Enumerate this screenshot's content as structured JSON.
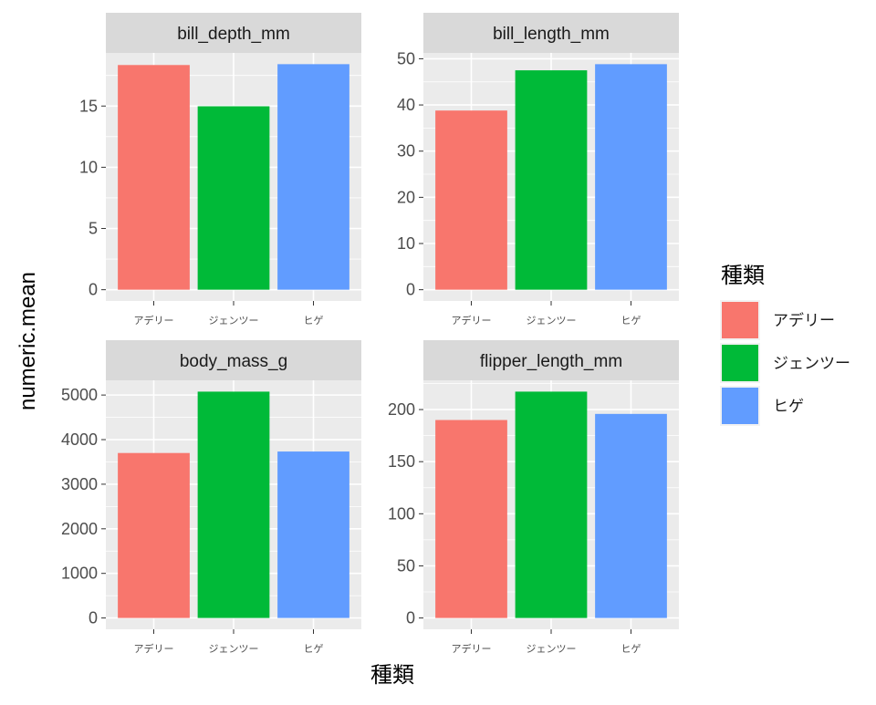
{
  "chart_data": {
    "type": "bar",
    "layout": "facet_wrap",
    "xlabel": "種類",
    "ylabel": "numeric.mean",
    "categories": [
      "アデリー",
      "ジェンツー",
      "ヒゲ"
    ],
    "colors": [
      "#F8766D",
      "#00BA38",
      "#619CFF"
    ],
    "legend": {
      "title": "種類",
      "placement": "right",
      "entries": [
        "アデリー",
        "ジェンツー",
        "ヒゲ"
      ]
    },
    "grid": true,
    "facets": [
      {
        "strip": "bill_depth_mm",
        "values": [
          18.35,
          14.98,
          18.42
        ],
        "ylim": [
          -0.92,
          19.34
        ],
        "yticks": [
          0,
          5,
          10,
          15
        ]
      },
      {
        "strip": "bill_length_mm",
        "values": [
          38.79,
          47.5,
          48.83
        ],
        "ylim": [
          -2.44,
          51.27
        ],
        "yticks": [
          0,
          10,
          20,
          30,
          40,
          50
        ]
      },
      {
        "strip": "body_mass_g",
        "values": [
          3700,
          5076,
          3733
        ],
        "ylim": [
          -254,
          5330
        ],
        "yticks": [
          0,
          1000,
          2000,
          3000,
          4000,
          5000
        ]
      },
      {
        "strip": "flipper_length_mm",
        "values": [
          189.95,
          217.19,
          195.82
        ],
        "ylim": [
          -10.86,
          228.05
        ],
        "yticks": [
          0,
          50,
          100,
          150,
          200
        ]
      }
    ]
  }
}
